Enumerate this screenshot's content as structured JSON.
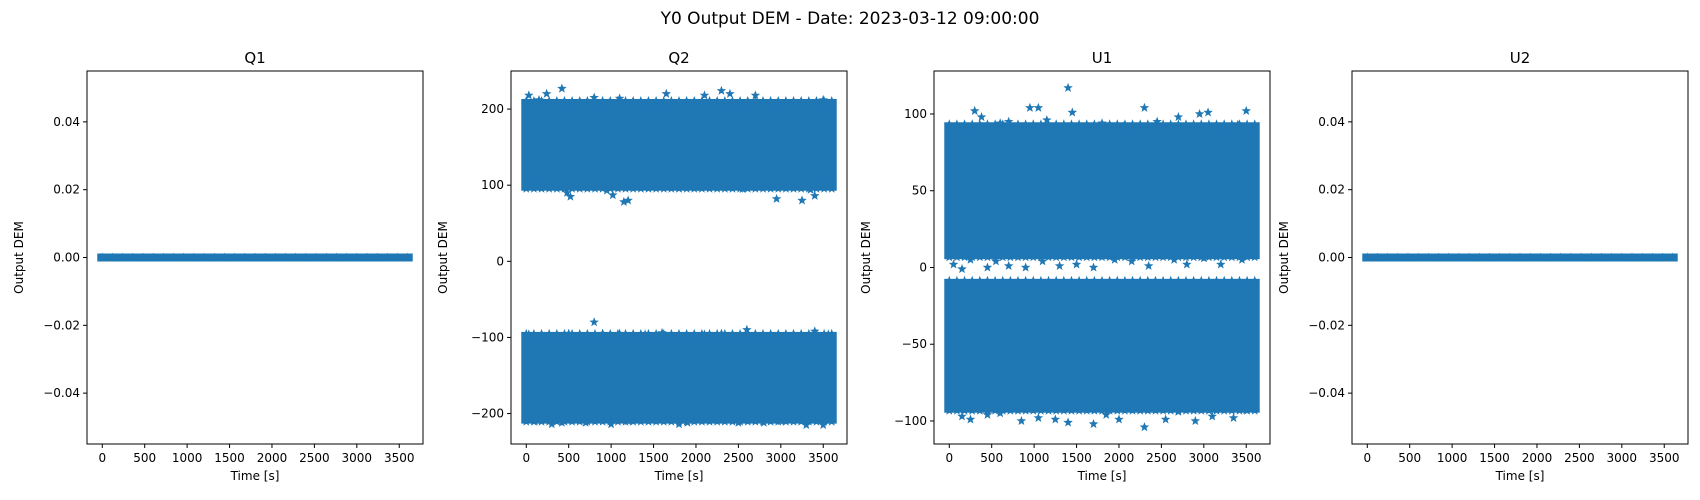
{
  "figure": {
    "title": "Y0 Output DEM - Date: 2023-03-12 09:00:00"
  },
  "colors": {
    "marker": "#1f77b4",
    "axes": "#000000",
    "background": "#ffffff"
  },
  "chart_data": [
    {
      "type": "scatter",
      "marker": "star",
      "title": "Q1",
      "xlabel": "Time [s]",
      "ylabel": "Output DEM",
      "xlim": [
        -180,
        3780
      ],
      "ylim": [
        -0.055,
        0.055
      ],
      "xticks": [
        0,
        500,
        1000,
        1500,
        2000,
        2500,
        3000,
        3500
      ],
      "yticks": [
        -0.04,
        -0.02,
        0.0,
        0.02,
        0.04
      ],
      "ytick_labels": [
        "−0.04",
        "−0.02",
        "0.00",
        "0.02",
        "0.04"
      ],
      "grid": false,
      "bands": [
        {
          "x": [
            0,
            3600
          ],
          "y": [
            0.0,
            0.0
          ]
        }
      ],
      "outliers": []
    },
    {
      "type": "scatter",
      "marker": "star",
      "title": "Q2",
      "xlabel": "Time [s]",
      "ylabel": "Output DEM",
      "xlim": [
        -180,
        3780
      ],
      "ylim": [
        -240,
        250
      ],
      "xticks": [
        0,
        500,
        1000,
        1500,
        2000,
        2500,
        3000,
        3500
      ],
      "yticks": [
        -200,
        -100,
        0,
        100,
        200
      ],
      "ytick_labels": [
        "−200",
        "−100",
        "0",
        "100",
        "200"
      ],
      "grid": false,
      "bands": [
        {
          "x": [
            0,
            3600
          ],
          "y": [
            98,
            208
          ]
        },
        {
          "x": [
            0,
            3600
          ],
          "y": [
            -208,
            -98
          ]
        }
      ],
      "outliers": [
        [
          30,
          218
        ],
        [
          60,
          105
        ],
        [
          110,
          100
        ],
        [
          150,
          212
        ],
        [
          240,
          220
        ],
        [
          420,
          227
        ],
        [
          480,
          90
        ],
        [
          520,
          85
        ],
        [
          800,
          215
        ],
        [
          950,
          93
        ],
        [
          1020,
          87
        ],
        [
          1100,
          214
        ],
        [
          1150,
          78
        ],
        [
          1200,
          80
        ],
        [
          1350,
          100
        ],
        [
          1650,
          220
        ],
        [
          1800,
          96
        ],
        [
          2000,
          97
        ],
        [
          2100,
          218
        ],
        [
          2300,
          224
        ],
        [
          2400,
          220
        ],
        [
          2550,
          95
        ],
        [
          2700,
          218
        ],
        [
          2950,
          82
        ],
        [
          3100,
          98
        ],
        [
          3250,
          80
        ],
        [
          3350,
          94
        ],
        [
          3400,
          86
        ],
        [
          3500,
          212
        ],
        [
          3560,
          100
        ],
        [
          30,
          -96
        ],
        [
          100,
          -210
        ],
        [
          300,
          -214
        ],
        [
          420,
          -212
        ],
        [
          500,
          -95
        ],
        [
          700,
          -212
        ],
        [
          800,
          -80
        ],
        [
          900,
          -95
        ],
        [
          1000,
          -214
        ],
        [
          1100,
          -95
        ],
        [
          1200,
          -210
        ],
        [
          1300,
          -100
        ],
        [
          1400,
          -96
        ],
        [
          1600,
          -94
        ],
        [
          1700,
          -208
        ],
        [
          1800,
          -214
        ],
        [
          1900,
          -212
        ],
        [
          2100,
          -96
        ],
        [
          2300,
          -95
        ],
        [
          2500,
          -212
        ],
        [
          2600,
          -90
        ],
        [
          2700,
          -96
        ],
        [
          2800,
          -212
        ],
        [
          3000,
          -210
        ],
        [
          3300,
          -215
        ],
        [
          3400,
          -92
        ],
        [
          3500,
          -215
        ],
        [
          3560,
          -96
        ]
      ]
    },
    {
      "type": "scatter",
      "marker": "star",
      "title": "U1",
      "xlabel": "Time [s]",
      "ylabel": "Output DEM",
      "xlim": [
        -180,
        3780
      ],
      "ylim": [
        -115,
        128
      ],
      "xticks": [
        0,
        500,
        1000,
        1500,
        2000,
        2500,
        3000,
        3500
      ],
      "yticks": [
        -100,
        -50,
        0,
        50,
        100
      ],
      "ytick_labels": [
        "−100",
        "−50",
        "0",
        "50",
        "100"
      ],
      "grid": false,
      "bands": [
        {
          "x": [
            0,
            3600
          ],
          "y": [
            8,
            92
          ]
        },
        {
          "x": [
            0,
            3600
          ],
          "y": [
            -92,
            -10
          ]
        }
      ],
      "outliers": [
        [
          80,
          92
        ],
        [
          160,
          90
        ],
        [
          300,
          102
        ],
        [
          380,
          98
        ],
        [
          600,
          94
        ],
        [
          700,
          95
        ],
        [
          950,
          104
        ],
        [
          1050,
          104
        ],
        [
          1150,
          96
        ],
        [
          1400,
          117
        ],
        [
          1450,
          101
        ],
        [
          1800,
          94
        ],
        [
          2050,
          92
        ],
        [
          2300,
          104
        ],
        [
          2450,
          95
        ],
        [
          2700,
          98
        ],
        [
          2950,
          100
        ],
        [
          3050,
          101
        ],
        [
          3250,
          90
        ],
        [
          3400,
          93
        ],
        [
          3500,
          102
        ],
        [
          3560,
          90
        ],
        [
          50,
          2
        ],
        [
          150,
          -1
        ],
        [
          250,
          5
        ],
        [
          450,
          0
        ],
        [
          550,
          4
        ],
        [
          700,
          1
        ],
        [
          900,
          0
        ],
        [
          1100,
          4
        ],
        [
          1300,
          1
        ],
        [
          1500,
          2
        ],
        [
          1700,
          0
        ],
        [
          1950,
          5
        ],
        [
          2150,
          4
        ],
        [
          2350,
          1
        ],
        [
          2650,
          5
        ],
        [
          2800,
          2
        ],
        [
          3000,
          6
        ],
        [
          3200,
          2
        ],
        [
          3450,
          5
        ],
        [
          150,
          -97
        ],
        [
          250,
          -99
        ],
        [
          450,
          -96
        ],
        [
          600,
          -95
        ],
        [
          850,
          -100
        ],
        [
          1050,
          -98
        ],
        [
          1250,
          -99
        ],
        [
          1400,
          -101
        ],
        [
          1700,
          -102
        ],
        [
          1850,
          -96
        ],
        [
          2000,
          -99
        ],
        [
          2300,
          -104
        ],
        [
          2550,
          -99
        ],
        [
          2700,
          -94
        ],
        [
          2900,
          -100
        ],
        [
          3100,
          -97
        ],
        [
          3350,
          -98
        ],
        [
          3500,
          -93
        ]
      ]
    },
    {
      "type": "scatter",
      "marker": "star",
      "title": "U2",
      "xlabel": "Time [s]",
      "ylabel": "Output DEM",
      "xlim": [
        -180,
        3780
      ],
      "ylim": [
        -0.055,
        0.055
      ],
      "xticks": [
        0,
        500,
        1000,
        1500,
        2000,
        2500,
        3000,
        3500
      ],
      "yticks": [
        -0.04,
        -0.02,
        0.0,
        0.02,
        0.04
      ],
      "ytick_labels": [
        "−0.04",
        "−0.02",
        "0.00",
        "0.02",
        "0.04"
      ],
      "grid": false,
      "bands": [
        {
          "x": [
            0,
            3600
          ],
          "y": [
            0.0,
            0.0
          ]
        }
      ],
      "outliers": []
    }
  ]
}
